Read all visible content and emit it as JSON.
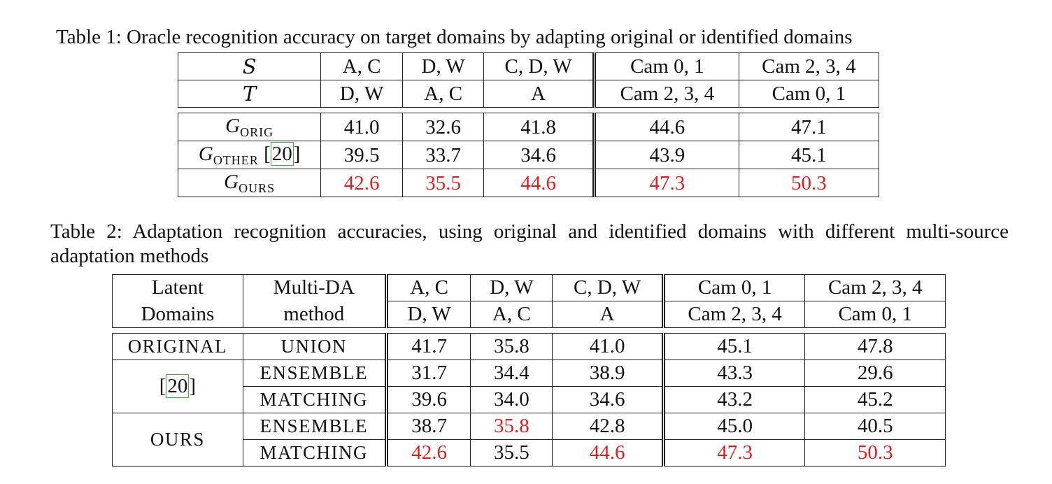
{
  "table1": {
    "caption": "Table 1: Oracle recognition accuracy on target domains by adapting original or identified domains",
    "header_s": {
      "symbol": "S",
      "cols": [
        "A, C",
        "D, W",
        "C, D, W",
        "Cam 0, 1",
        "Cam 2, 3, 4"
      ]
    },
    "header_t": {
      "symbol": "T",
      "cols": [
        "D, W",
        "A, C",
        "A",
        "Cam 2, 3, 4",
        "Cam 0, 1"
      ]
    },
    "rows": [
      {
        "g": "G",
        "sub": "ORIG",
        "cite": "",
        "values": [
          "41.0",
          "32.6",
          "41.8",
          "44.6",
          "47.1"
        ],
        "highlight": [
          false,
          false,
          false,
          false,
          false
        ]
      },
      {
        "g": "G",
        "sub": "OTHER",
        "cite": "20",
        "values": [
          "39.5",
          "33.7",
          "34.6",
          "43.9",
          "45.1"
        ],
        "highlight": [
          false,
          false,
          false,
          false,
          false
        ]
      },
      {
        "g": "G",
        "sub": "OURS",
        "cite": "",
        "values": [
          "42.6",
          "35.5",
          "44.6",
          "47.3",
          "50.3"
        ],
        "highlight": [
          true,
          true,
          true,
          true,
          true
        ]
      }
    ]
  },
  "table2": {
    "caption": "Table 2: Adaptation recognition accuracies, using original and identified domains with different multi-source adaptation methods",
    "header": {
      "latent_1": "Latent",
      "latent_2": "Domains",
      "method_1": "Multi-DA",
      "method_2": "method",
      "s_cols": [
        "A, C",
        "D, W",
        "C, D, W",
        "Cam 0, 1",
        "Cam 2, 3, 4"
      ],
      "t_cols": [
        "D, W",
        "A, C",
        "A",
        "Cam 2, 3, 4",
        "Cam 0, 1"
      ]
    },
    "groups": [
      {
        "name": "ORIGINAL",
        "rows": [
          {
            "method": "UNION",
            "values": [
              "41.7",
              "35.8",
              "41.0",
              "45.1",
              "47.8"
            ]
          }
        ]
      },
      {
        "name": "[20]",
        "rows": [
          {
            "method": "ENSEMBLE",
            "values": [
              "31.7",
              "34.4",
              "38.9",
              "43.3",
              "29.6"
            ]
          },
          {
            "method": "MATCHING",
            "values": [
              "39.6",
              "34.0",
              "34.6",
              "43.2",
              "45.2"
            ]
          }
        ]
      },
      {
        "name": "OURS",
        "rows": [
          {
            "method": "ENSEMBLE",
            "values": [
              "38.7",
              "35.8",
              "42.8",
              "45.0",
              "40.5"
            ]
          },
          {
            "method": "MATCHING",
            "values": [
              "42.6",
              "35.5",
              "44.6",
              "47.3",
              "50.3"
            ]
          }
        ]
      }
    ],
    "highlight_color": "#e41c1c"
  }
}
